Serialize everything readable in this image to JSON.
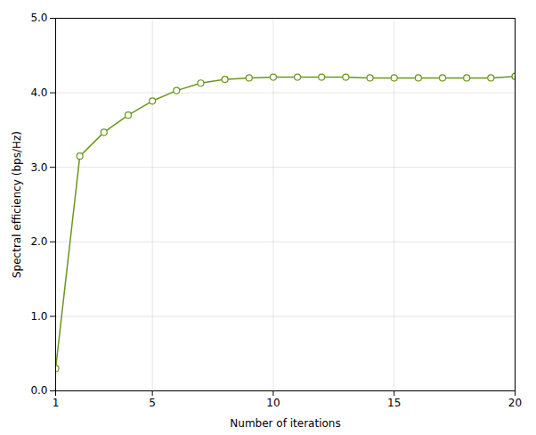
{
  "chart_data": {
    "type": "line",
    "x": [
      1,
      2,
      3,
      4,
      5,
      6,
      7,
      8,
      9,
      10,
      11,
      12,
      13,
      14,
      15,
      16,
      17,
      18,
      19,
      20
    ],
    "values": [
      0.3,
      3.15,
      3.47,
      3.7,
      3.89,
      4.03,
      4.13,
      4.18,
      4.2,
      4.21,
      4.21,
      4.21,
      4.21,
      4.2,
      4.2,
      4.2,
      4.2,
      4.2,
      4.2,
      4.22
    ],
    "color": "#6a961f",
    "marker": "o",
    "xlabel": "Number of iterations",
    "ylabel": "Spectral efficiency (bps/Hz)",
    "xlim": [
      1,
      20
    ],
    "ylim": [
      0,
      5
    ],
    "xticks": [
      1,
      5,
      10,
      15,
      20
    ],
    "yticks": [
      0,
      1,
      2,
      3,
      4,
      5
    ],
    "grid": true
  }
}
